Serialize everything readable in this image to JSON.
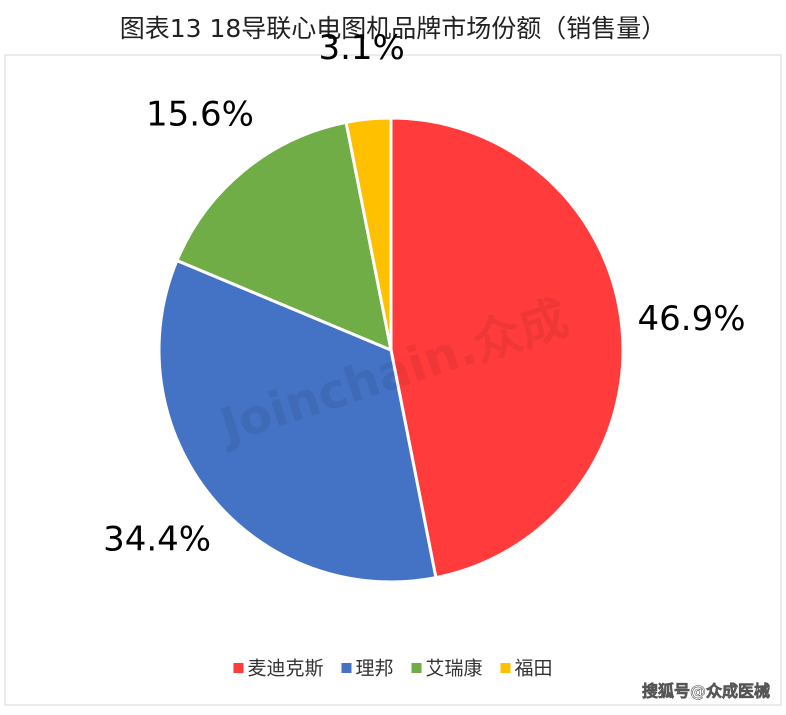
{
  "chart_data": {
    "type": "pie",
    "title": "图表13  18导联心电图机品牌市场份额（销售量）",
    "categories": [
      "麦迪克斯",
      "理邦",
      "艾瑞康",
      "福田"
    ],
    "values": [
      46.9,
      34.4,
      15.6,
      3.1
    ],
    "value_labels": [
      "46.9%",
      "34.4%",
      "15.6%",
      "3.1%"
    ],
    "colors": [
      "#FF3B3B",
      "#4472C4",
      "#70AD47",
      "#FFC000"
    ],
    "legend": "bottom"
  },
  "watermark": "Joinchain.众成",
  "source_watermark": "搜狐号@众成医械"
}
